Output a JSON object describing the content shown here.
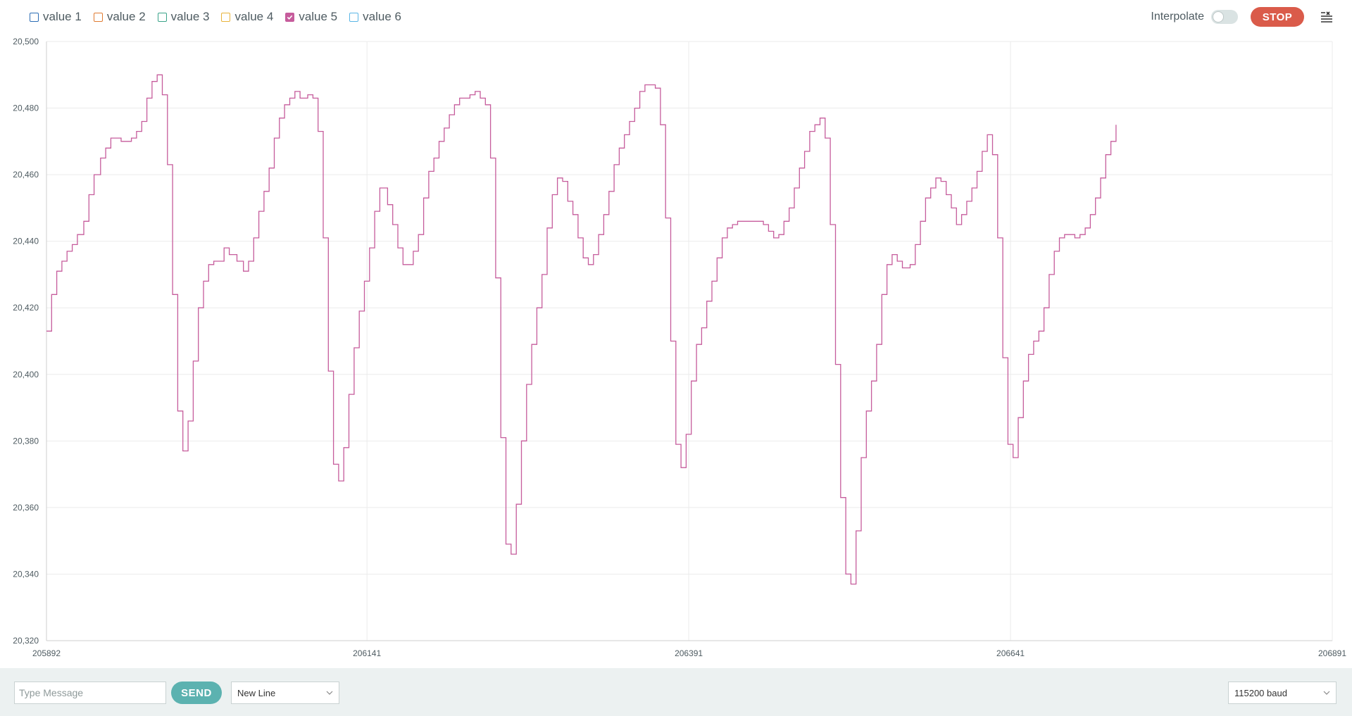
{
  "legend": [
    {
      "label": "value 1",
      "color": "#2c6db5",
      "checked": false
    },
    {
      "label": "value 2",
      "color": "#e07b32",
      "checked": false
    },
    {
      "label": "value 3",
      "color": "#3aa389",
      "checked": false
    },
    {
      "label": "value 4",
      "color": "#e8b33a",
      "checked": false
    },
    {
      "label": "value 5",
      "color": "#c65c9c",
      "checked": true
    },
    {
      "label": "value 6",
      "color": "#5ab6e6",
      "checked": false
    }
  ],
  "toolbar": {
    "interpolate_label": "Interpolate",
    "interpolate_on": false,
    "stop_label": "STOP",
    "clear_icon": "clear-list-icon"
  },
  "bottom": {
    "message_placeholder": "Type Message",
    "send_label": "SEND",
    "line_ending": "New Line",
    "baud_rate": "115200 baud"
  },
  "chart_data": {
    "type": "line",
    "xlim": [
      205892,
      206891
    ],
    "ylim": [
      20320,
      20500
    ],
    "yticks": [
      "20,320",
      "20,340",
      "20,360",
      "20,380",
      "20,400",
      "20,420",
      "20,440",
      "20,460",
      "20,480",
      "20,500"
    ],
    "xticks": [
      "205892",
      "206141",
      "206391",
      "206641",
      "206891"
    ],
    "grid": true,
    "series": [
      {
        "name": "value 5",
        "color": "#c65c9c",
        "points": [
          [
            205892,
            20413
          ],
          [
            205896,
            20424
          ],
          [
            205900,
            20431
          ],
          [
            205904,
            20434
          ],
          [
            205908,
            20437
          ],
          [
            205912,
            20439
          ],
          [
            205916,
            20442
          ],
          [
            205921,
            20446
          ],
          [
            205925,
            20454
          ],
          [
            205929,
            20460
          ],
          [
            205934,
            20465
          ],
          [
            205938,
            20468
          ],
          [
            205942,
            20471
          ],
          [
            205950,
            20470
          ],
          [
            205958,
            20471
          ],
          [
            205962,
            20473
          ],
          [
            205966,
            20476
          ],
          [
            205970,
            20483
          ],
          [
            205974,
            20488
          ],
          [
            205978,
            20490
          ],
          [
            205982,
            20484
          ],
          [
            205986,
            20463
          ],
          [
            205990,
            20424
          ],
          [
            205994,
            20389
          ],
          [
            205998,
            20377
          ],
          [
            206002,
            20386
          ],
          [
            206006,
            20404
          ],
          [
            206010,
            20420
          ],
          [
            206014,
            20428
          ],
          [
            206018,
            20433
          ],
          [
            206022,
            20434
          ],
          [
            206030,
            20438
          ],
          [
            206034,
            20436
          ],
          [
            206040,
            20434
          ],
          [
            206045,
            20431
          ],
          [
            206049,
            20434
          ],
          [
            206053,
            20441
          ],
          [
            206057,
            20449
          ],
          [
            206061,
            20455
          ],
          [
            206065,
            20462
          ],
          [
            206069,
            20471
          ],
          [
            206073,
            20477
          ],
          [
            206077,
            20481
          ],
          [
            206081,
            20483
          ],
          [
            206085,
            20485
          ],
          [
            206089,
            20483
          ],
          [
            206095,
            20484
          ],
          [
            206099,
            20483
          ],
          [
            206103,
            20473
          ],
          [
            206107,
            20441
          ],
          [
            206111,
            20401
          ],
          [
            206115,
            20373
          ],
          [
            206119,
            20368
          ],
          [
            206123,
            20378
          ],
          [
            206127,
            20394
          ],
          [
            206131,
            20408
          ],
          [
            206135,
            20419
          ],
          [
            206139,
            20428
          ],
          [
            206143,
            20438
          ],
          [
            206147,
            20449
          ],
          [
            206151,
            20456
          ],
          [
            206157,
            20451
          ],
          [
            206161,
            20445
          ],
          [
            206165,
            20438
          ],
          [
            206169,
            20433
          ],
          [
            206177,
            20437
          ],
          [
            206181,
            20442
          ],
          [
            206185,
            20453
          ],
          [
            206189,
            20461
          ],
          [
            206193,
            20465
          ],
          [
            206197,
            20470
          ],
          [
            206201,
            20474
          ],
          [
            206205,
            20478
          ],
          [
            206209,
            20481
          ],
          [
            206213,
            20483
          ],
          [
            206221,
            20484
          ],
          [
            206225,
            20485
          ],
          [
            206229,
            20483
          ],
          [
            206233,
            20481
          ],
          [
            206237,
            20465
          ],
          [
            206241,
            20429
          ],
          [
            206245,
            20381
          ],
          [
            206249,
            20349
          ],
          [
            206253,
            20346
          ],
          [
            206257,
            20361
          ],
          [
            206261,
            20380
          ],
          [
            206265,
            20397
          ],
          [
            206269,
            20409
          ],
          [
            206273,
            20420
          ],
          [
            206277,
            20430
          ],
          [
            206281,
            20444
          ],
          [
            206285,
            20454
          ],
          [
            206289,
            20459
          ],
          [
            206293,
            20458
          ],
          [
            206297,
            20452
          ],
          [
            206301,
            20448
          ],
          [
            206305,
            20441
          ],
          [
            206309,
            20435
          ],
          [
            206313,
            20433
          ],
          [
            206317,
            20436
          ],
          [
            206321,
            20442
          ],
          [
            206325,
            20448
          ],
          [
            206329,
            20455
          ],
          [
            206333,
            20463
          ],
          [
            206337,
            20468
          ],
          [
            206341,
            20472
          ],
          [
            206345,
            20476
          ],
          [
            206349,
            20480
          ],
          [
            206353,
            20485
          ],
          [
            206357,
            20487
          ],
          [
            206365,
            20486
          ],
          [
            206369,
            20475
          ],
          [
            206373,
            20447
          ],
          [
            206377,
            20410
          ],
          [
            206381,
            20379
          ],
          [
            206385,
            20372
          ],
          [
            206389,
            20382
          ],
          [
            206393,
            20398
          ],
          [
            206397,
            20409
          ],
          [
            206401,
            20414
          ],
          [
            206405,
            20422
          ],
          [
            206409,
            20428
          ],
          [
            206413,
            20435
          ],
          [
            206417,
            20441
          ],
          [
            206421,
            20444
          ],
          [
            206425,
            20445
          ],
          [
            206429,
            20446
          ],
          [
            206449,
            20445
          ],
          [
            206453,
            20443
          ],
          [
            206457,
            20441
          ],
          [
            206461,
            20442
          ],
          [
            206465,
            20446
          ],
          [
            206469,
            20450
          ],
          [
            206473,
            20456
          ],
          [
            206477,
            20462
          ],
          [
            206481,
            20467
          ],
          [
            206485,
            20473
          ],
          [
            206489,
            20475
          ],
          [
            206493,
            20477
          ],
          [
            206497,
            20471
          ],
          [
            206501,
            20445
          ],
          [
            206505,
            20403
          ],
          [
            206509,
            20363
          ],
          [
            206513,
            20340
          ],
          [
            206517,
            20337
          ],
          [
            206521,
            20353
          ],
          [
            206525,
            20375
          ],
          [
            206529,
            20389
          ],
          [
            206533,
            20398
          ],
          [
            206537,
            20409
          ],
          [
            206541,
            20424
          ],
          [
            206545,
            20433
          ],
          [
            206549,
            20436
          ],
          [
            206553,
            20434
          ],
          [
            206557,
            20432
          ],
          [
            206563,
            20433
          ],
          [
            206567,
            20439
          ],
          [
            206571,
            20446
          ],
          [
            206575,
            20453
          ],
          [
            206579,
            20456
          ],
          [
            206583,
            20459
          ],
          [
            206587,
            20458
          ],
          [
            206591,
            20454
          ],
          [
            206595,
            20450
          ],
          [
            206599,
            20445
          ],
          [
            206603,
            20448
          ],
          [
            206607,
            20452
          ],
          [
            206611,
            20456
          ],
          [
            206615,
            20461
          ],
          [
            206619,
            20467
          ],
          [
            206623,
            20472
          ],
          [
            206627,
            20466
          ],
          [
            206631,
            20441
          ],
          [
            206635,
            20405
          ],
          [
            206639,
            20379
          ],
          [
            206643,
            20375
          ],
          [
            206647,
            20387
          ],
          [
            206651,
            20398
          ],
          [
            206655,
            20406
          ],
          [
            206659,
            20410
          ],
          [
            206663,
            20413
          ],
          [
            206667,
            20420
          ],
          [
            206671,
            20430
          ],
          [
            206675,
            20437
          ],
          [
            206679,
            20441
          ],
          [
            206683,
            20442
          ],
          [
            206691,
            20441
          ],
          [
            206695,
            20442
          ],
          [
            206699,
            20444
          ],
          [
            206703,
            20448
          ],
          [
            206707,
            20453
          ],
          [
            206711,
            20459
          ],
          [
            206715,
            20466
          ],
          [
            206719,
            20470
          ],
          [
            206723,
            20475
          ]
        ]
      }
    ]
  }
}
